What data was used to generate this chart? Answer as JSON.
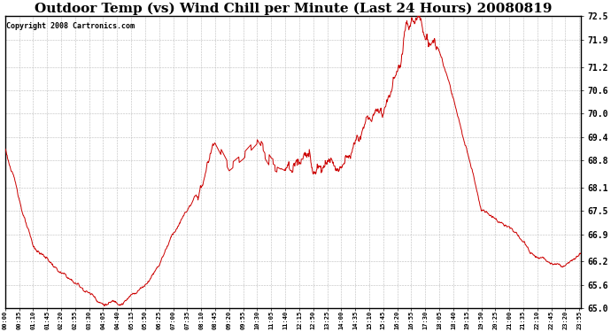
{
  "title": "Outdoor Temp (vs) Wind Chill per Minute (Last 24 Hours) 20080819",
  "copyright_text": "Copyright 2008 Cartronics.com",
  "line_color": "#cc0000",
  "background_color": "#ffffff",
  "plot_bg_color": "#ffffff",
  "grid_color": "#bbbbbb",
  "ylim": [
    65.0,
    72.5
  ],
  "yticks": [
    65.0,
    65.6,
    66.2,
    66.9,
    67.5,
    68.1,
    68.8,
    69.4,
    70.0,
    70.6,
    71.2,
    71.9,
    72.5
  ],
  "xtick_labels": [
    "00:00",
    "00:35",
    "01:10",
    "01:45",
    "02:20",
    "02:55",
    "03:30",
    "04:05",
    "04:40",
    "05:15",
    "05:50",
    "06:25",
    "07:00",
    "07:35",
    "08:10",
    "08:45",
    "09:20",
    "09:55",
    "10:30",
    "11:05",
    "11:40",
    "12:15",
    "12:50",
    "13:25",
    "14:00",
    "14:35",
    "15:10",
    "15:45",
    "16:20",
    "16:55",
    "17:30",
    "18:05",
    "18:40",
    "19:15",
    "19:50",
    "20:25",
    "21:00",
    "21:35",
    "22:10",
    "22:45",
    "23:20",
    "23:55"
  ],
  "key_x": [
    0,
    35,
    70,
    105,
    140,
    175,
    210,
    245,
    280,
    315,
    350,
    385,
    420,
    455,
    490,
    525,
    560,
    595,
    630,
    665,
    700,
    735,
    770,
    805,
    840,
    875,
    910,
    945,
    980,
    1015,
    1050,
    1085,
    1120,
    1155,
    1190,
    1225,
    1260,
    1295,
    1330,
    1365,
    1400,
    1435
  ],
  "key_y": [
    69.1,
    67.8,
    66.6,
    66.3,
    65.9,
    65.65,
    65.4,
    65.1,
    65.12,
    65.35,
    65.6,
    66.1,
    66.9,
    67.5,
    68.1,
    69.3,
    68.6,
    68.9,
    69.3,
    68.7,
    68.5,
    68.8,
    68.5,
    68.7,
    68.6,
    69.3,
    69.9,
    70.0,
    71.2,
    72.5,
    71.9,
    71.6,
    70.4,
    69.0,
    67.5,
    67.3,
    67.1,
    66.7,
    66.3,
    66.15,
    66.1,
    66.4
  ],
  "title_fontsize": 11,
  "copyright_fontsize": 6,
  "ytick_fontsize": 7,
  "xtick_fontsize": 5
}
